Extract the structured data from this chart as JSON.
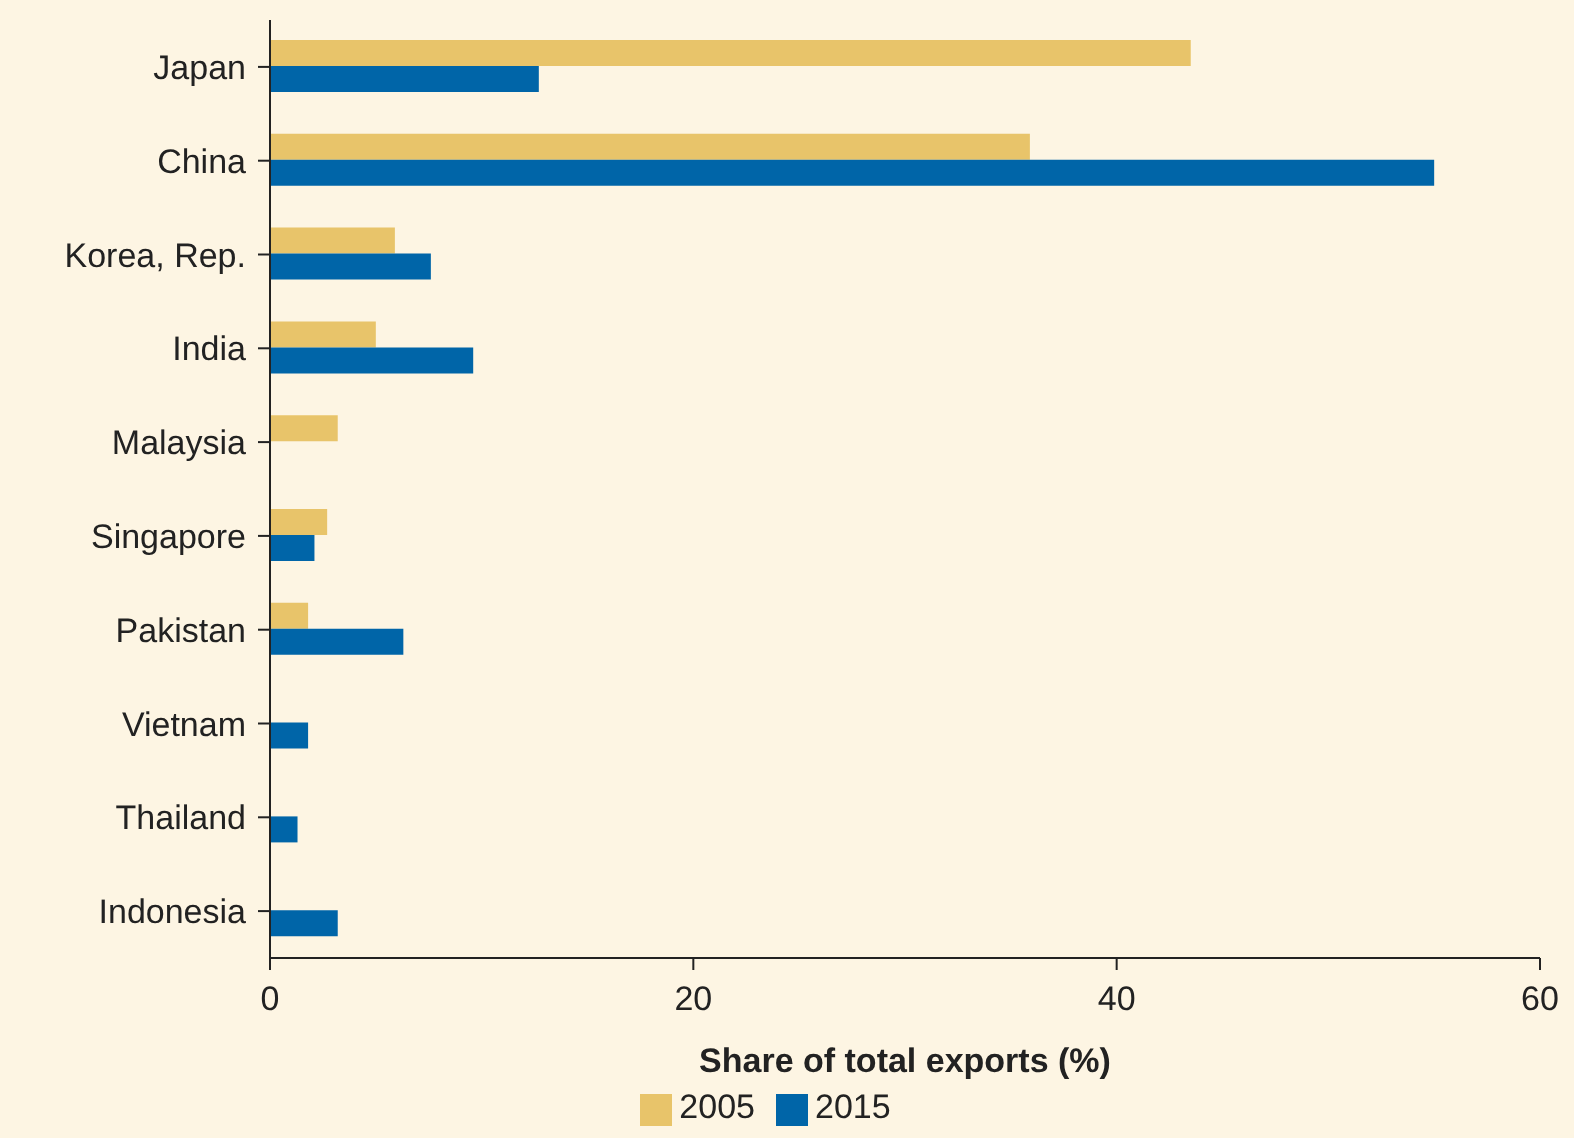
{
  "chart_data": {
    "type": "bar",
    "orientation": "horizontal",
    "xlabel": "Share of total exports (%)",
    "categories": [
      "Japan",
      "China",
      "Korea, Rep.",
      "India",
      "Malaysia",
      "Singapore",
      "Pakistan",
      "Vietnam",
      "Thailand",
      "Indonesia"
    ],
    "series": [
      {
        "name": "2005",
        "color": "#e8c46a",
        "values": [
          43.5,
          35.9,
          5.9,
          5.0,
          3.2,
          2.7,
          1.8,
          null,
          null,
          null
        ]
      },
      {
        "name": "2015",
        "color": "#0065a8",
        "values": [
          12.7,
          55.0,
          7.6,
          9.6,
          null,
          2.1,
          6.3,
          1.8,
          1.3,
          3.2
        ]
      }
    ],
    "xlim": [
      0,
      60
    ],
    "xticks": [
      0,
      20,
      40,
      60
    ],
    "grid": false,
    "legend": "bottom"
  }
}
